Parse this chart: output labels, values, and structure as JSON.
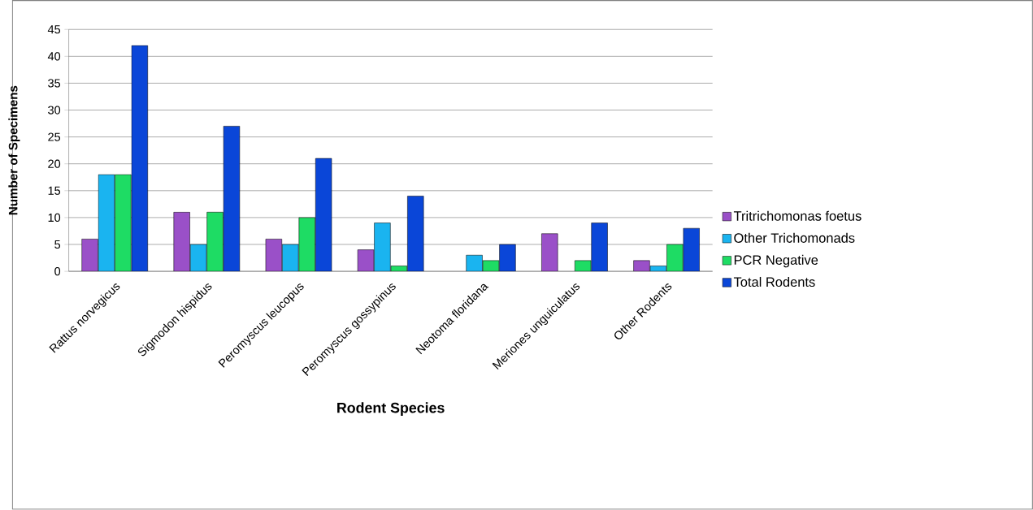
{
  "chart_data": {
    "type": "bar",
    "xlabel": "Rodent Species",
    "ylabel": "Number of Specimens",
    "categories": [
      "Rattus norvegicus",
      "Sigmodon hispidus",
      "Peromyscus leucopus",
      "Peromyscus gossypinus",
      "Neotoma floridana",
      "Meriones unguiculatus",
      "Other Rodents"
    ],
    "series": [
      {
        "name": "Tritrichomonas foetus",
        "color": "#9a50c8",
        "values": [
          6,
          11,
          6,
          4,
          0,
          7,
          2
        ]
      },
      {
        "name": "Other Trichomonads",
        "color": "#1ab4f0",
        "values": [
          18,
          5,
          5,
          9,
          3,
          0,
          1
        ]
      },
      {
        "name": "PCR Negative",
        "color": "#1edc64",
        "values": [
          18,
          11,
          10,
          1,
          2,
          2,
          5
        ]
      },
      {
        "name": "Total Rodents",
        "color": "#0a46d8",
        "values": [
          42,
          27,
          21,
          14,
          5,
          9,
          8
        ]
      }
    ],
    "ylim": [
      0,
      45
    ],
    "yticks": [
      0,
      5,
      10,
      15,
      20,
      25,
      30,
      35,
      40,
      45
    ],
    "grid": "y",
    "legend": "right"
  }
}
